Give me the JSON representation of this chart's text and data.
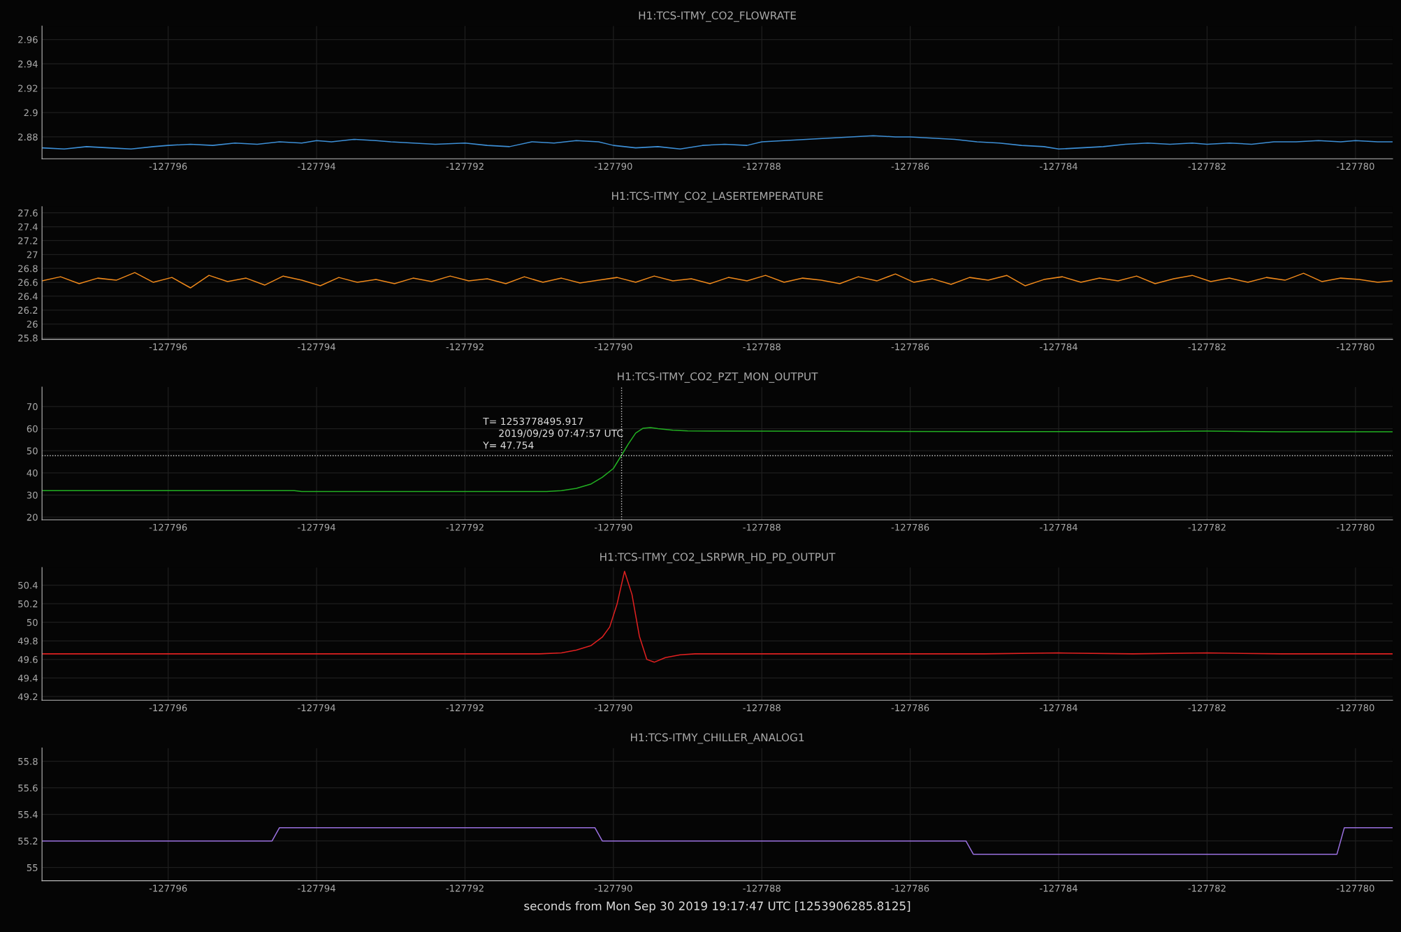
{
  "chart_data": [
    {
      "type": "line",
      "title": "H1:TCS-ITMY_CO2_FLOWRATE",
      "xlim": [
        -127797.7,
        -127779.5
      ],
      "xticks": [
        -127796,
        -127794,
        -127792,
        -127790,
        -127788,
        -127786,
        -127784,
        -127782,
        -127780
      ],
      "ylim": [
        2.862,
        2.971
      ],
      "yticks": [
        2.88,
        2.9,
        2.92,
        2.94,
        2.96
      ],
      "grid": true,
      "series": [
        {
          "color": "#3d8fd6",
          "x": [
            -127797.7,
            -127797.4,
            -127797.1,
            -127796.8,
            -127796.5,
            -127796.2,
            -127796.0,
            -127795.7,
            -127795.4,
            -127795.1,
            -127794.8,
            -127794.5,
            -127794.2,
            -127794.0,
            -127793.8,
            -127793.5,
            -127793.2,
            -127793.0,
            -127792.7,
            -127792.4,
            -127792.0,
            -127791.7,
            -127791.4,
            -127791.1,
            -127790.8,
            -127790.5,
            -127790.2,
            -127790.0,
            -127789.7,
            -127789.4,
            -127789.1,
            -127788.8,
            -127788.5,
            -127788.2,
            -127788.0,
            -127787.7,
            -127787.4,
            -127787.1,
            -127786.8,
            -127786.5,
            -127786.2,
            -127786.0,
            -127785.7,
            -127785.4,
            -127785.1,
            -127784.8,
            -127784.5,
            -127784.2,
            -127784.0,
            -127783.7,
            -127783.4,
            -127783.1,
            -127782.8,
            -127782.5,
            -127782.2,
            -127782.0,
            -127781.7,
            -127781.4,
            -127781.1,
            -127780.8,
            -127780.5,
            -127780.2,
            -127780.0,
            -127779.7,
            -127779.5
          ],
          "values": [
            2.871,
            2.87,
            2.872,
            2.871,
            2.87,
            2.872,
            2.873,
            2.874,
            2.873,
            2.875,
            2.874,
            2.876,
            2.875,
            2.877,
            2.876,
            2.878,
            2.877,
            2.876,
            2.875,
            2.874,
            2.875,
            2.873,
            2.872,
            2.876,
            2.875,
            2.877,
            2.876,
            2.873,
            2.871,
            2.872,
            2.87,
            2.873,
            2.874,
            2.873,
            2.876,
            2.877,
            2.878,
            2.879,
            2.88,
            2.881,
            2.88,
            2.88,
            2.879,
            2.878,
            2.876,
            2.875,
            2.873,
            2.872,
            2.87,
            2.871,
            2.872,
            2.874,
            2.875,
            2.874,
            2.875,
            2.874,
            2.875,
            2.874,
            2.876,
            2.876,
            2.877,
            2.876,
            2.877,
            2.876,
            2.876
          ]
        }
      ]
    },
    {
      "type": "line",
      "title": "H1:TCS-ITMY_CO2_LASERTEMPERATURE",
      "xlim": [
        -127797.7,
        -127779.5
      ],
      "xticks": [
        -127796,
        -127794,
        -127792,
        -127790,
        -127788,
        -127786,
        -127784,
        -127782,
        -127780
      ],
      "ylim": [
        25.78,
        27.69
      ],
      "yticks": [
        25.8,
        26,
        26.2,
        26.4,
        26.6,
        26.8,
        27,
        27.2,
        27.4,
        27.6
      ],
      "grid": true,
      "series": [
        {
          "color": "#f0891a",
          "x": [
            -127797.7,
            -127797.45,
            -127797.2,
            -127796.95,
            -127796.7,
            -127796.45,
            -127796.2,
            -127795.95,
            -127795.7,
            -127795.45,
            -127795.2,
            -127794.95,
            -127794.7,
            -127794.45,
            -127794.2,
            -127793.95,
            -127793.7,
            -127793.45,
            -127793.2,
            -127792.95,
            -127792.7,
            -127792.45,
            -127792.2,
            -127791.95,
            -127791.7,
            -127791.45,
            -127791.2,
            -127790.95,
            -127790.7,
            -127790.45,
            -127790.2,
            -127789.95,
            -127789.7,
            -127789.45,
            -127789.2,
            -127788.95,
            -127788.7,
            -127788.45,
            -127788.2,
            -127787.95,
            -127787.7,
            -127787.45,
            -127787.2,
            -127786.95,
            -127786.7,
            -127786.45,
            -127786.2,
            -127785.95,
            -127785.7,
            -127785.45,
            -127785.2,
            -127784.95,
            -127784.7,
            -127784.45,
            -127784.2,
            -127783.95,
            -127783.7,
            -127783.45,
            -127783.2,
            -127782.95,
            -127782.7,
            -127782.45,
            -127782.2,
            -127781.95,
            -127781.7,
            -127781.45,
            -127781.2,
            -127780.95,
            -127780.7,
            -127780.45,
            -127780.2,
            -127779.95,
            -127779.7,
            -127779.5
          ],
          "values": [
            26.62,
            26.68,
            26.58,
            26.66,
            26.63,
            26.74,
            26.6,
            26.67,
            26.52,
            26.7,
            26.61,
            26.66,
            26.56,
            26.69,
            26.63,
            26.55,
            26.67,
            26.6,
            26.64,
            26.58,
            26.66,
            26.61,
            26.69,
            26.62,
            26.65,
            26.58,
            26.68,
            26.6,
            26.66,
            26.59,
            26.63,
            26.67,
            26.6,
            26.69,
            26.62,
            26.65,
            26.58,
            26.67,
            26.62,
            26.7,
            26.6,
            26.66,
            26.63,
            26.58,
            26.68,
            26.62,
            26.72,
            26.6,
            26.65,
            26.57,
            26.67,
            26.63,
            26.7,
            26.55,
            26.64,
            26.68,
            26.6,
            26.66,
            26.62,
            26.69,
            26.58,
            26.65,
            26.7,
            26.61,
            26.66,
            26.6,
            26.67,
            26.63,
            26.73,
            26.61,
            26.66,
            26.64,
            26.6,
            26.62
          ]
        }
      ]
    },
    {
      "type": "line",
      "title": "H1:TCS-ITMY_CO2_PZT_MON_OUTPUT",
      "xlim": [
        -127797.7,
        -127779.5
      ],
      "xticks": [
        -127796,
        -127794,
        -127792,
        -127790,
        -127788,
        -127786,
        -127784,
        -127782,
        -127780
      ],
      "ylim": [
        18.8,
        78.8
      ],
      "yticks": [
        20,
        30,
        40,
        50,
        60,
        70
      ],
      "grid": true,
      "ref_lines": [
        {
          "axis": "x",
          "value": -127789.89,
          "color": "#cccccc",
          "line_style": "dotted"
        },
        {
          "axis": "y",
          "value": 47.754,
          "color": "#cccccc",
          "line_style": "dotted"
        }
      ],
      "annotations": [
        "T= 1253778495.917\n     2019/09/29 07:47:57 UTC\nY= 47.754"
      ],
      "series": [
        {
          "color": "#22b022",
          "x": [
            -127797.7,
            -127796,
            -127794.3,
            -127794.2,
            -127792,
            -127790.9,
            -127790.7,
            -127790.5,
            -127790.3,
            -127790.15,
            -127790.0,
            -127789.89,
            -127789.8,
            -127789.7,
            -127789.6,
            -127789.5,
            -127789.4,
            -127789.2,
            -127789.0,
            -127788.5,
            -127787,
            -127785,
            -127783,
            -127782,
            -127781,
            -127779.5
          ],
          "values": [
            32,
            32,
            32,
            31.6,
            31.6,
            31.6,
            32,
            33,
            35,
            38,
            42,
            48,
            53,
            58,
            60.2,
            60.5,
            60,
            59.3,
            59,
            58.9,
            58.8,
            58.7,
            58.7,
            58.9,
            58.6,
            58.6
          ]
        }
      ]
    },
    {
      "type": "line",
      "title": "H1:TCS-ITMY_CO2_LSRPWR_HD_PD_OUTPUT",
      "xlim": [
        -127797.7,
        -127779.5
      ],
      "xticks": [
        -127796,
        -127794,
        -127792,
        -127790,
        -127788,
        -127786,
        -127784,
        -127782,
        -127780
      ],
      "ylim": [
        49.16,
        50.59
      ],
      "yticks": [
        49.2,
        49.4,
        49.6,
        49.8,
        50,
        50.2,
        50.4
      ],
      "grid": true,
      "series": [
        {
          "color": "#e02020",
          "x": [
            -127797.7,
            -127797,
            -127796,
            -127795,
            -127794,
            -127793,
            -127792,
            -127791,
            -127790.7,
            -127790.5,
            -127790.3,
            -127790.15,
            -127790.05,
            -127789.95,
            -127789.85,
            -127789.75,
            -127789.65,
            -127789.55,
            -127789.45,
            -127789.3,
            -127789.1,
            -127788.9,
            -127788,
            -127787,
            -127786,
            -127785,
            -127784,
            -127783,
            -127782,
            -127781,
            -127780,
            -127779.5
          ],
          "values": [
            49.66,
            49.66,
            49.66,
            49.66,
            49.66,
            49.66,
            49.66,
            49.66,
            49.67,
            49.7,
            49.75,
            49.84,
            49.95,
            50.2,
            50.55,
            50.3,
            49.85,
            49.6,
            49.57,
            49.62,
            49.65,
            49.66,
            49.66,
            49.66,
            49.66,
            49.66,
            49.67,
            49.66,
            49.67,
            49.66,
            49.66,
            49.66
          ]
        }
      ]
    },
    {
      "type": "line",
      "title": "H1:TCS-ITMY_CHILLER_ANALOG1",
      "xlabel": "seconds from Mon Sep 30 2019 19:17:47 UTC [1253906285.8125]",
      "xlim": [
        -127797.7,
        -127779.5
      ],
      "xticks": [
        -127796,
        -127794,
        -127792,
        -127790,
        -127788,
        -127786,
        -127784,
        -127782,
        -127780
      ],
      "ylim": [
        54.9,
        55.9
      ],
      "yticks": [
        55,
        55.2,
        55.4,
        55.6,
        55.8
      ],
      "grid": true,
      "series": [
        {
          "color": "#9a70e0",
          "x": [
            -127797.7,
            -127794.6,
            -127794.5,
            -127790.25,
            -127790.15,
            -127785.25,
            -127785.15,
            -127780.25,
            -127780.15,
            -127779.5
          ],
          "values": [
            55.2,
            55.2,
            55.3,
            55.3,
            55.2,
            55.2,
            55.1,
            55.1,
            55.3,
            55.3
          ]
        }
      ]
    }
  ]
}
